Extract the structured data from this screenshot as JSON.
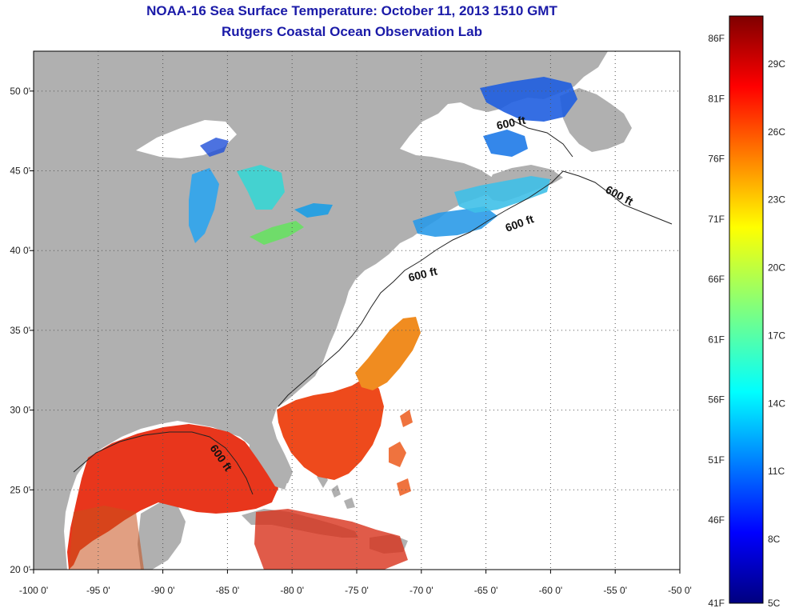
{
  "title": "NOAA-16 Sea Surface Temperature:  October 11, 2013 1510 GMT",
  "subtitle": "Rutgers Coastal Ocean Observation Lab",
  "colors": {
    "land": "#b0b0b0",
    "ocean_nodata": "#ffffff",
    "title": "#1a1aa8"
  },
  "map": {
    "lon_range": [
      -100,
      -50
    ],
    "lat_range": [
      20,
      52.5
    ],
    "lon_ticks": [
      {
        "value": -100,
        "label": "-100 0'"
      },
      {
        "value": -95,
        "label": "-95 0'"
      },
      {
        "value": -90,
        "label": "-90 0'"
      },
      {
        "value": -85,
        "label": "-85 0'"
      },
      {
        "value": -80,
        "label": "-80 0'"
      },
      {
        "value": -75,
        "label": "-75 0'"
      },
      {
        "value": -70,
        "label": "-70 0'"
      },
      {
        "value": -65,
        "label": "-65 0'"
      },
      {
        "value": -60,
        "label": "-60 0'"
      },
      {
        "value": -55,
        "label": "-55 0'"
      },
      {
        "value": -50,
        "label": "-50 0'"
      }
    ],
    "lat_ticks": [
      {
        "value": 50,
        "label": "50 0'"
      },
      {
        "value": 45,
        "label": "45 0'"
      },
      {
        "value": 40,
        "label": "40 0'"
      },
      {
        "value": 35,
        "label": "35 0'"
      },
      {
        "value": 30,
        "label": "30 0'"
      },
      {
        "value": 25,
        "label": "25 0'"
      },
      {
        "value": 20,
        "label": "20 0'"
      }
    ],
    "contour_labels": [
      {
        "text": "600 ft"
      },
      {
        "text": "600 ft"
      },
      {
        "text": "600 ft"
      },
      {
        "text": "600 ft"
      },
      {
        "text": "600 ft"
      }
    ]
  },
  "colorbar": {
    "fahrenheit_labels": [
      "86F",
      "81F",
      "76F",
      "71F",
      "66F",
      "61F",
      "56F",
      "51F",
      "46F",
      "41F"
    ],
    "celsius_labels": [
      "29C",
      "26C",
      "23C",
      "20C",
      "17C",
      "14C",
      "11C",
      "8C",
      "5C"
    ]
  }
}
